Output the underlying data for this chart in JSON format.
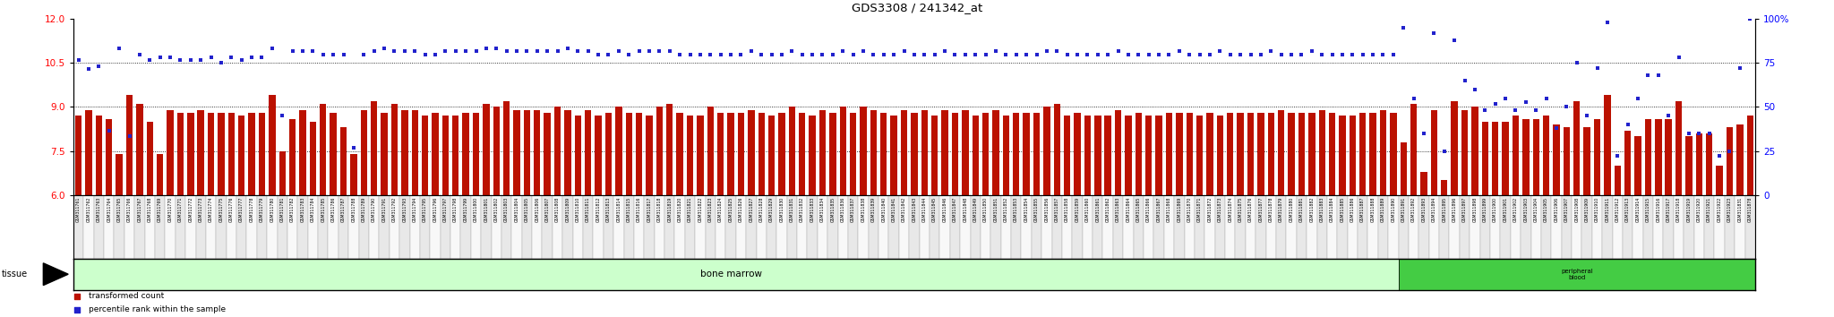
{
  "title": "GDS3308 / 241342_at",
  "ylim_left": [
    6.0,
    12.0
  ],
  "ylim_right": [
    0,
    100
  ],
  "yticks_left": [
    6.0,
    7.5,
    9.0,
    10.5,
    12.0
  ],
  "yticks_right": [
    0,
    25,
    50,
    75,
    100
  ],
  "bar_color": "#bb1100",
  "dot_color": "#2222cc",
  "bar_baseline": 6.0,
  "bone_marrow_count": 130,
  "sample_ids": [
    "GSM311761",
    "GSM311762",
    "GSM311763",
    "GSM311764",
    "GSM311765",
    "GSM311766",
    "GSM311767",
    "GSM311768",
    "GSM311769",
    "GSM311770",
    "GSM311771",
    "GSM311772",
    "GSM311773",
    "GSM311774",
    "GSM311775",
    "GSM311776",
    "GSM311777",
    "GSM311778",
    "GSM311779",
    "GSM311780",
    "GSM311781",
    "GSM311782",
    "GSM311783",
    "GSM311784",
    "GSM311785",
    "GSM311786",
    "GSM311787",
    "GSM311788",
    "GSM311789",
    "GSM311790",
    "GSM311791",
    "GSM311792",
    "GSM311793",
    "GSM311794",
    "GSM311795",
    "GSM311796",
    "GSM311797",
    "GSM311798",
    "GSM311799",
    "GSM311800",
    "GSM311801",
    "GSM311802",
    "GSM311803",
    "GSM311804",
    "GSM311805",
    "GSM311806",
    "GSM311807",
    "GSM311808",
    "GSM311809",
    "GSM311810",
    "GSM311811",
    "GSM311812",
    "GSM311813",
    "GSM311814",
    "GSM311815",
    "GSM311816",
    "GSM311817",
    "GSM311818",
    "GSM311819",
    "GSM311820",
    "GSM311821",
    "GSM311822",
    "GSM311823",
    "GSM311824",
    "GSM311825",
    "GSM311826",
    "GSM311827",
    "GSM311828",
    "GSM311829",
    "GSM311830",
    "GSM311831",
    "GSM311832",
    "GSM311833",
    "GSM311834",
    "GSM311835",
    "GSM311836",
    "GSM311837",
    "GSM311838",
    "GSM311839",
    "GSM311840",
    "GSM311841",
    "GSM311842",
    "GSM311843",
    "GSM311844",
    "GSM311845",
    "GSM311846",
    "GSM311847",
    "GSM311848",
    "GSM311849",
    "GSM311850",
    "GSM311851",
    "GSM311852",
    "GSM311853",
    "GSM311854",
    "GSM311855",
    "GSM311856",
    "GSM311857",
    "GSM311858",
    "GSM311859",
    "GSM311860",
    "GSM311861",
    "GSM311862",
    "GSM311863",
    "GSM311864",
    "GSM311865",
    "GSM311866",
    "GSM311867",
    "GSM311868",
    "GSM311869",
    "GSM311870",
    "GSM311871",
    "GSM311872",
    "GSM311873",
    "GSM311874",
    "GSM311875",
    "GSM311876",
    "GSM311877",
    "GSM311878",
    "GSM311879",
    "GSM311880",
    "GSM311881",
    "GSM311882",
    "GSM311883",
    "GSM311884",
    "GSM311885",
    "GSM311886",
    "GSM311887",
    "GSM311888",
    "GSM311889",
    "GSM311890",
    "GSM311891",
    "GSM311892",
    "GSM311893",
    "GSM311894",
    "GSM311895",
    "GSM311896",
    "GSM311897",
    "GSM311898",
    "GSM311899",
    "GSM311900",
    "GSM311901",
    "GSM311902",
    "GSM311903",
    "GSM311904",
    "GSM311905",
    "GSM311906",
    "GSM311907",
    "GSM311908",
    "GSM311909",
    "GSM311910",
    "GSM311911",
    "GSM311912",
    "GSM311913",
    "GSM311914",
    "GSM311915",
    "GSM311916",
    "GSM311917",
    "GSM311918",
    "GSM311919",
    "GSM311920",
    "GSM311921",
    "GSM311922",
    "GSM311923",
    "GSM311831",
    "GSM311878"
  ],
  "bar_values": [
    8.7,
    8.9,
    8.7,
    8.6,
    7.4,
    9.4,
    9.1,
    8.5,
    7.4,
    8.9,
    8.8,
    8.8,
    8.9,
    8.8,
    8.8,
    8.8,
    8.7,
    8.8,
    8.8,
    9.4,
    7.5,
    8.6,
    8.9,
    8.5,
    9.1,
    8.8,
    8.3,
    7.4,
    8.9,
    9.2,
    8.8,
    9.1,
    8.9,
    8.9,
    8.7,
    8.8,
    8.7,
    8.7,
    8.8,
    8.8,
    9.1,
    9.0,
    9.2,
    8.9,
    8.9,
    8.9,
    8.8,
    9.0,
    8.9,
    8.7,
    8.9,
    8.7,
    8.8,
    9.0,
    8.8,
    8.8,
    8.7,
    9.0,
    9.1,
    8.8,
    8.7,
    8.7,
    9.0,
    8.8,
    8.8,
    8.8,
    8.9,
    8.8,
    8.7,
    8.8,
    9.0,
    8.8,
    8.7,
    8.9,
    8.8,
    9.0,
    8.8,
    9.0,
    8.9,
    8.8,
    8.7,
    8.9,
    8.8,
    8.9,
    8.7,
    8.9,
    8.8,
    8.9,
    8.7,
    8.8,
    8.9,
    8.7,
    8.8,
    8.8,
    8.8,
    9.0,
    9.1,
    8.7,
    8.8,
    8.7,
    8.7,
    8.7,
    8.9,
    8.7,
    8.8,
    8.7,
    8.7,
    8.8,
    8.8,
    8.8,
    8.7,
    8.8,
    8.7,
    8.8,
    8.8,
    8.8,
    8.8,
    8.8,
    8.9,
    8.8,
    8.8,
    8.8,
    8.9,
    8.8,
    8.7,
    8.7,
    8.8,
    8.8,
    8.9,
    8.8,
    7.8,
    9.1,
    6.8,
    8.9,
    6.5,
    9.2,
    8.9,
    9.0,
    8.5,
    8.5,
    8.5,
    8.7,
    8.6,
    8.6,
    8.7,
    8.4,
    8.3,
    9.2,
    8.3,
    8.6,
    9.4,
    7.0,
    8.2,
    8.0,
    8.6,
    8.6,
    8.6,
    9.2,
    8.0,
    8.1,
    8.1,
    7.0,
    8.3,
    8.4,
    8.7
  ],
  "dot_values_left_axis": [
    10.6,
    10.3,
    10.4,
    8.2,
    11.0,
    8.0,
    10.8,
    10.6,
    10.7,
    10.7,
    10.6,
    10.6,
    10.6,
    10.7,
    10.5,
    10.7,
    10.6,
    10.7,
    10.7,
    11.0,
    8.7,
    10.9,
    10.9,
    10.9,
    10.8,
    10.8,
    10.8,
    7.6,
    10.8,
    10.9,
    11.0,
    10.9,
    10.9,
    10.9,
    10.8,
    10.8,
    10.9,
    10.9,
    10.9,
    10.9,
    11.0,
    11.0,
    10.9,
    10.9,
    10.9,
    10.9,
    10.9,
    10.9,
    11.0,
    10.9,
    10.9,
    10.8,
    10.8,
    10.9,
    10.8,
    10.9,
    10.9,
    10.9,
    10.9,
    10.8,
    10.8,
    10.8,
    10.8,
    10.8,
    10.8,
    10.8,
    10.9,
    10.8,
    10.8,
    10.8,
    10.9,
    10.8,
    10.8,
    10.8,
    10.8,
    10.9,
    10.8,
    10.9,
    10.8,
    10.8,
    10.8,
    10.9,
    10.8,
    10.8,
    10.8,
    10.9,
    10.8,
    10.8,
    10.8,
    10.8,
    10.9,
    10.8,
    10.8,
    10.8,
    10.8,
    10.9,
    10.9,
    10.8,
    10.8,
    10.8,
    10.8,
    10.8,
    10.9,
    10.8,
    10.8,
    10.8,
    10.8,
    10.8,
    10.9,
    10.8,
    10.8,
    10.8,
    10.9,
    10.8,
    10.8,
    10.8,
    10.8,
    10.9,
    10.8,
    10.8,
    10.8,
    10.9,
    10.8,
    10.8,
    10.8,
    10.8,
    10.8,
    10.8,
    10.8,
    10.8
  ],
  "dot_values_right_axis": [
    95.0,
    55.0,
    35.0,
    92.0,
    25.0,
    88.0,
    65.0,
    60.0,
    48.0,
    52.0,
    55.0,
    48.0,
    53.0,
    48.0,
    55.0,
    38.0,
    50.0,
    75.0,
    45.0,
    72.0,
    98.0,
    22.0,
    40.0,
    55.0,
    68.0,
    68.0,
    45.0,
    78.0,
    35.0,
    35.0,
    35.0,
    22.0,
    25.0,
    72.0,
    100.0
  ],
  "tissue_label_1": "bone marrow",
  "tissue_label_2": "peripheral\nblood",
  "tissue_color_1": "#ccffcc",
  "tissue_color_2": "#44cc44",
  "cell_color_odd": "#e8e8e8",
  "cell_color_even": "#f8f8f8",
  "legend_items": [
    "transformed count",
    "percentile rank within the sample"
  ],
  "legend_colors": [
    "#bb1100",
    "#2222cc"
  ]
}
